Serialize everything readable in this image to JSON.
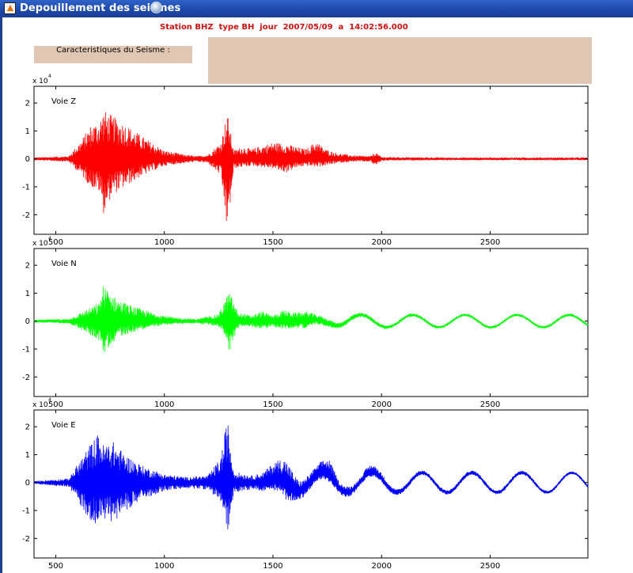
{
  "window": {
    "title": "Depouillement des seismes"
  },
  "header": {
    "station_line": "Station BHZ  type BH  jour  2007/05/09  a  14:02:56.000"
  },
  "panel": {
    "caracteristiques_label": "Caracteristiques du Seisme :",
    "info_text": ""
  },
  "colors": {
    "z": "#ff0000",
    "n": "#00ff00",
    "e": "#0000ff",
    "panel": "#e0c7b3",
    "station_text": "#d01010"
  },
  "chart_data": [
    {
      "type": "line",
      "legend": "Voie Z",
      "exponent_label": "x 10",
      "exponent_sup": "4",
      "xlim": [
        400,
        2950
      ],
      "ylim": [
        -2.7,
        2.6
      ],
      "xticks": [
        500,
        1000,
        1500,
        2000,
        2500
      ],
      "yticks": [
        -2,
        -1,
        0,
        1,
        2
      ],
      "grid": false,
      "series": [
        {
          "color": "#ff0000",
          "envelope": {
            "x": [
              400,
              560,
              620,
              660,
              700,
              720,
              760,
              820,
              900,
              1000,
              1100,
              1150,
              1200,
              1260,
              1290,
              1320,
              1360,
              1400,
              1500,
              1560,
              1600,
              1650,
              1700,
              1740,
              1800,
              1880,
              1950,
              1970,
              2000,
              2100,
              2300,
              2600,
              2950
            ],
            "upper": [
              0.05,
              0.1,
              0.7,
              1.2,
              1.35,
              1.75,
              1.55,
              1.25,
              0.8,
              0.3,
              0.15,
              0.1,
              0.15,
              0.6,
              1.65,
              0.3,
              0.45,
              0.35,
              0.6,
              0.55,
              0.45,
              0.35,
              0.65,
              0.35,
              0.2,
              0.12,
              0.1,
              0.25,
              0.07,
              0.06,
              0.05,
              0.05,
              0.05
            ],
            "lower": [
              -0.05,
              -0.1,
              -0.6,
              -1.0,
              -1.2,
              -1.95,
              -1.3,
              -1.0,
              -0.6,
              -0.25,
              -0.15,
              -0.1,
              -0.15,
              -0.6,
              -2.7,
              -0.35,
              -0.3,
              -0.25,
              -0.35,
              -0.5,
              -0.35,
              -0.25,
              -0.3,
              -0.25,
              -0.15,
              -0.1,
              -0.1,
              -0.25,
              -0.07,
              -0.06,
              -0.05,
              -0.05,
              -0.05
            ]
          }
        }
      ]
    },
    {
      "type": "line",
      "legend": "Voie N",
      "exponent_label": "x 10",
      "exponent_sup": "4",
      "xlim": [
        400,
        2950
      ],
      "ylim": [
        -2.7,
        2.6
      ],
      "xticks": [
        500,
        1000,
        1500,
        2000,
        2500
      ],
      "yticks": [
        -2,
        -1,
        0,
        1,
        2
      ],
      "grid": false,
      "series": [
        {
          "color": "#00ff00",
          "envelope": {
            "x": [
              400,
              560,
              640,
              700,
              720,
              780,
              850,
              950,
              1050,
              1150,
              1250,
              1280,
              1300,
              1340,
              1400,
              1450,
              1500,
              1550,
              1600,
              1650,
              1700,
              1760,
              1800,
              1900,
              2000,
              2100,
              2300,
              2500,
              2700,
              2950
            ],
            "upper": [
              0.05,
              0.08,
              0.4,
              0.65,
              1.3,
              0.8,
              0.55,
              0.3,
              0.12,
              0.08,
              0.25,
              0.8,
              1.05,
              0.3,
              0.2,
              0.35,
              0.2,
              0.4,
              0.3,
              0.35,
              0.2,
              0.15,
              0.1,
              0.08,
              0.07,
              0.06,
              0.05,
              0.05,
              0.05,
              0.05
            ],
            "lower": [
              -0.05,
              -0.08,
              -0.4,
              -0.7,
              -1.2,
              -0.6,
              -0.4,
              -0.2,
              -0.1,
              -0.08,
              -0.2,
              -0.5,
              -1.15,
              -0.25,
              -0.2,
              -0.3,
              -0.2,
              -0.3,
              -0.25,
              -0.25,
              -0.15,
              -0.12,
              -0.1,
              -0.08,
              -0.07,
              -0.06,
              -0.05,
              -0.05,
              -0.05,
              -0.05
            ]
          },
          "wave": {
            "amplitude": 0.22,
            "period": 240,
            "start": 1650,
            "end": 2950,
            "phase": 1.2
          }
        }
      ]
    },
    {
      "type": "line",
      "legend": "Voie E",
      "exponent_label": "x 10",
      "exponent_sup": "4",
      "xlim": [
        400,
        2950
      ],
      "ylim": [
        -2.7,
        2.6
      ],
      "xticks": [
        500,
        1000,
        1500,
        2000,
        2500
      ],
      "yticks": [
        -2,
        -1,
        0,
        1,
        2
      ],
      "grid": false,
      "series": [
        {
          "color": "#0000ff",
          "envelope": {
            "x": [
              400,
              560,
              620,
              660,
              700,
              720,
              760,
              820,
              900,
              1000,
              1100,
              1200,
              1260,
              1290,
              1320,
              1400,
              1450,
              1500,
              1530,
              1560,
              1620,
              1700,
              1760,
              1800,
              1900,
              1950,
              2050,
              2200,
              2500,
              2950
            ],
            "upper": [
              0.05,
              0.15,
              0.9,
              1.4,
              1.8,
              1.35,
              1.5,
              1.0,
              0.6,
              0.3,
              0.2,
              0.25,
              0.9,
              2.3,
              0.4,
              0.25,
              0.35,
              0.6,
              0.75,
              0.85,
              0.35,
              0.3,
              0.6,
              0.25,
              0.15,
              0.3,
              0.12,
              0.08,
              0.08,
              0.05
            ],
            "lower": [
              -0.05,
              -0.15,
              -0.9,
              -1.4,
              -1.5,
              -1.3,
              -1.45,
              -1.0,
              -0.6,
              -0.3,
              -0.2,
              -0.25,
              -0.7,
              -1.85,
              -0.35,
              -0.25,
              -0.3,
              -0.35,
              -0.45,
              -0.6,
              -0.3,
              -0.25,
              -0.2,
              -0.2,
              -0.12,
              -0.15,
              -0.1,
              -0.08,
              -0.08,
              -0.05
            ]
          },
          "wave": {
            "amplitude": 0.35,
            "period": 230,
            "start": 1450,
            "end": 2950,
            "phase": 0.3
          }
        }
      ]
    }
  ]
}
